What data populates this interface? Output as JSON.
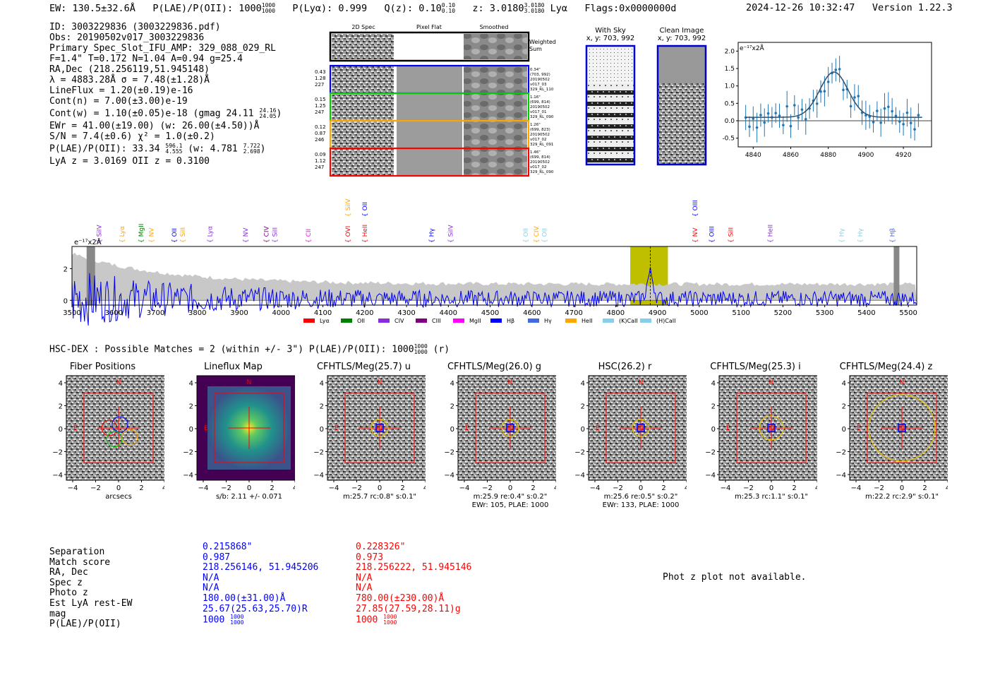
{
  "header": {
    "ew": "EW: 130.5±32.6Å",
    "plae_label": "P(LAE)/P(OII): 1000",
    "plae_hi": "1000",
    "plae_lo": "1000",
    "plya": "P(Lyα): 0.999",
    "qz_label": "Q(z): 0.10",
    "qz_hi": "0.10",
    "qz_lo": "0.10",
    "z_label": "z: 3.0180",
    "z_hi": "3.0180",
    "z_lo": "3.0180",
    "line": "Lyα",
    "flags": "Flags:0x0000000d",
    "timestamp": "2024-12-26 10:32:47",
    "version": "Version 1.22.3"
  },
  "info": {
    "id": "ID: 3003229836 (3003229836.pdf)",
    "obs": "Obs: 20190502v017_3003229836",
    "primary": "Primary Spec_Slot_IFU_AMP: 329_088_029_RL",
    "fparams": "F=1.4\"  T=0.172  N=1.04  A=0.94  g=25.4",
    "radec": "RA,Dec (218.256119,51.945148)",
    "lambda": "λ = 4883.28Å  σ = 7.48(±1.28)Å",
    "lineflux": "LineFlux = 1.20(±0.19)e-16",
    "contn": "Cont(n) = 7.00(±3.00)e-19",
    "contw": "Cont(w) = 1.10(±0.05)e-18 (gmag 24.11",
    "contw_hi": "24.16",
    "contw_lo": "24.05",
    "contw_end": ")",
    "ewr": "EWr = 41.00(±19.00) (w: 26.00(±4.50))Å",
    "sn": "S/N = 7.4(±0.6)  χ² = 1.0(±0.2)",
    "plae": "P(LAE)/P(OII): 33.34",
    "plae_hi": "596.1",
    "plae_lo": "4.555",
    "plae_w": "(w: 4.781",
    "plae_w_hi": "7.722",
    "plae_w_lo": "2.698",
    "plae_w_end": ")",
    "zline": "LyA z = 3.0169  OII z = 0.3100"
  },
  "stamps": {
    "col_headers": [
      "2D Spec",
      "Pixel Flat",
      "Smoothed"
    ],
    "weighted_label": "Weighted Sum",
    "rows": [
      {
        "left": [
          "0.43",
          "1.28",
          "227"
        ],
        "right": [
          "0.34\"",
          "(703, 992)",
          "20190502",
          "v017_03",
          "329_RL_110"
        ],
        "color": "#0000ff"
      },
      {
        "left": [
          "0.15",
          "1.25",
          "247"
        ],
        "right": [
          "1.16\"",
          "(699, 814)",
          "20190502",
          "v017_01",
          "329_RL_090"
        ],
        "color": "#00cc00"
      },
      {
        "left": [
          "0.12",
          "0.87",
          "246"
        ],
        "right": [
          "1.26\"",
          "(699, 823)",
          "20190502",
          "v017_02",
          "329_RL_091"
        ],
        "color": "#ffa500"
      },
      {
        "left": [
          "0.09",
          "1.12",
          "247"
        ],
        "right": [
          "1.46\"",
          "(699, 814)",
          "20190502",
          "v017_02",
          "329_RL_090"
        ],
        "color": "#ff0000"
      }
    ],
    "with_sky_title": "With Sky",
    "with_sky_xy": "x, y: 703, 992",
    "clean_title": "Clean Image",
    "clean_xy": "x, y: 703, 992"
  },
  "fit_plot": {
    "units": "e⁻¹⁷x2Å",
    "x_ticks": [
      "4840",
      "4860",
      "4880",
      "4900",
      "4920"
    ],
    "y_ticks": [
      "2.0",
      "1.5",
      "1.0",
      "0.5",
      "0.0",
      "-0.5"
    ]
  },
  "chart_data": {
    "type": "line",
    "title": "",
    "ylabel": "e⁻¹⁷x2Å",
    "xlim": [
      3500,
      5520
    ],
    "ylim": [
      -0.3,
      3.4
    ],
    "x_ticks": [
      "3500",
      "3600",
      "3700",
      "3800",
      "3900",
      "4000",
      "4100",
      "4200",
      "4300",
      "4400",
      "4500",
      "4600",
      "4700",
      "4800",
      "4900",
      "5000",
      "5100",
      "5200",
      "5300",
      "5400",
      "5500"
    ],
    "y_ticks": [
      "0",
      "2"
    ],
    "highlight_range": [
      4835,
      4925
    ],
    "marker_x": 4883,
    "legend": [
      {
        "label": "Lyα",
        "color": "#ff0000"
      },
      {
        "label": "OII",
        "color": "#008000"
      },
      {
        "label": "CIV",
        "color": "#8a2be2"
      },
      {
        "label": "CIII",
        "color": "#800080"
      },
      {
        "label": "MgII",
        "color": "#ff00ff"
      },
      {
        "label": "Hβ",
        "color": "#0000ff"
      },
      {
        "label": "Hγ",
        "color": "#4169e1"
      },
      {
        "label": "HeII",
        "color": "#ffa500"
      },
      {
        "label": "(K)CaII",
        "color": "#87ceeb"
      },
      {
        "label": "(H)CaII",
        "color": "#87ceeb"
      }
    ],
    "line_labels": [
      {
        "label": "SiIV",
        "x": 3565,
        "color": "#8a2be2",
        "row": 0
      },
      {
        "label": "Lyα",
        "x": 3620,
        "color": "#ffa500",
        "row": 0
      },
      {
        "label": "MgII",
        "x": 3665,
        "color": "#008000",
        "row": 0
      },
      {
        "label": "NV",
        "x": 3690,
        "color": "#ffa500",
        "row": 0
      },
      {
        "label": "OII",
        "x": 3745,
        "color": "#0000ff",
        "row": 0
      },
      {
        "label": "SiII",
        "x": 3765,
        "color": "#ffa500",
        "row": 0
      },
      {
        "label": "Lyα",
        "x": 3830,
        "color": "#8a2be2",
        "row": 0
      },
      {
        "label": "NV",
        "x": 3915,
        "color": "#8a2be2",
        "row": 0
      },
      {
        "label": "CIV",
        "x": 3965,
        "color": "#800080",
        "row": 0
      },
      {
        "label": "SiII",
        "x": 3985,
        "color": "#8a2be2",
        "row": 0
      },
      {
        "label": "CII",
        "x": 4065,
        "color": "#ff00ff",
        "row": 0
      },
      {
        "label": "OVI",
        "x": 4160,
        "color": "#ff0000",
        "row": 0
      },
      {
        "label": "SiIV",
        "x": 4160,
        "color": "#ffa500",
        "row": 1
      },
      {
        "label": "HeII",
        "x": 4200,
        "color": "#ff0000",
        "row": 0
      },
      {
        "label": "OII",
        "x": 4200,
        "color": "#0000ff",
        "row": 1
      },
      {
        "label": "Hγ",
        "x": 4360,
        "color": "#0000ff",
        "row": 0
      },
      {
        "label": "SiIV",
        "x": 4405,
        "color": "#8a2be2",
        "row": 0
      },
      {
        "label": "OII",
        "x": 4585,
        "color": "#87ceeb",
        "row": 0
      },
      {
        "label": "CIV",
        "x": 4610,
        "color": "#ffa500",
        "row": 0
      },
      {
        "label": "OII",
        "x": 4630,
        "color": "#87ceeb",
        "row": 0
      },
      {
        "label": "NV",
        "x": 4990,
        "color": "#ff0000",
        "row": 0
      },
      {
        "label": "OIII",
        "x": 4990,
        "color": "#0000ff",
        "row": 1
      },
      {
        "label": "OIII",
        "x": 5030,
        "color": "#0000ff",
        "row": 0
      },
      {
        "label": "SiII",
        "x": 5075,
        "color": "#ff0000",
        "row": 0
      },
      {
        "label": "HeII",
        "x": 5170,
        "color": "#8a2be2",
        "row": 0
      },
      {
        "label": "Hγ",
        "x": 5340,
        "color": "#87ceeb",
        "row": 0
      },
      {
        "label": "Hγ",
        "x": 5385,
        "color": "#87ceeb",
        "row": 0
      },
      {
        "label": "Hβ",
        "x": 5462,
        "color": "#4169e1",
        "row": 0
      }
    ]
  },
  "hsc": {
    "title": "HSC-DEX : Possible Matches = 2 (within +/- 3\")  P(LAE)/P(OII): 1000",
    "plae_hi": "1000",
    "plae_lo": "1000",
    "band": "(r)",
    "panels": [
      {
        "title": "Fiber Positions",
        "caption1": "arcsecs",
        "caption2": ""
      },
      {
        "title": "Lineflux Map",
        "caption1": "s/b: 2.11 +/- 0.071",
        "caption2": ""
      },
      {
        "title": "CFHTLS/Meg(25.7) u",
        "caption1": "m:25.7 rc:0.8\"  s:0.1\"",
        "caption2": ""
      },
      {
        "title": "CFHTLS/Meg(26.0) g",
        "caption1": "m:25.9  re:0.4\"  s:0.2\"",
        "caption2": "EWr: 105, PLAE: 1000"
      },
      {
        "title": "HSC(26.2) r",
        "caption1": "m:25.6  re:0.5\"  s:0.2\"",
        "caption2": "EWr: 133, PLAE: 1000"
      },
      {
        "title": "CFHTLS/Meg(25.3) i",
        "caption1": "m:25.3 rc:1.1\"  s:0.1\"",
        "caption2": ""
      },
      {
        "title": "CFHTLS/Meg(24.4) z",
        "caption1": "m:22.2 rc:2.9\"  s:0.1\"",
        "caption2": ""
      }
    ],
    "axis_ticks": [
      "4",
      "2",
      "0",
      "−2",
      "−4"
    ],
    "x_ticks": [
      "−4",
      "−2",
      "0",
      "2",
      "4"
    ],
    "north": "N",
    "east": "E"
  },
  "matches": {
    "labels": [
      "Separation",
      "Match score",
      "RA, Dec",
      "Spec z",
      "Photo z",
      "Est LyA rest-EW",
      "mag",
      "P(LAE)/P(OII)"
    ],
    "blue": [
      "0.215868\"",
      "0.987",
      "218.256146, 51.945206",
      "N/A",
      "N/A",
      "180.00(±31.00)Å",
      "25.67(25.63,25.70)R",
      "1000"
    ],
    "red": [
      "0.228326\"",
      "0.973",
      "218.256222, 51.945146",
      "N/A",
      "N/A",
      "780.00(±230.00)Å",
      "27.85(27.59,28.11)g",
      "1000"
    ],
    "frac_hi": "1000",
    "frac_lo": "1000",
    "photz_note": "Phot z plot not available."
  }
}
